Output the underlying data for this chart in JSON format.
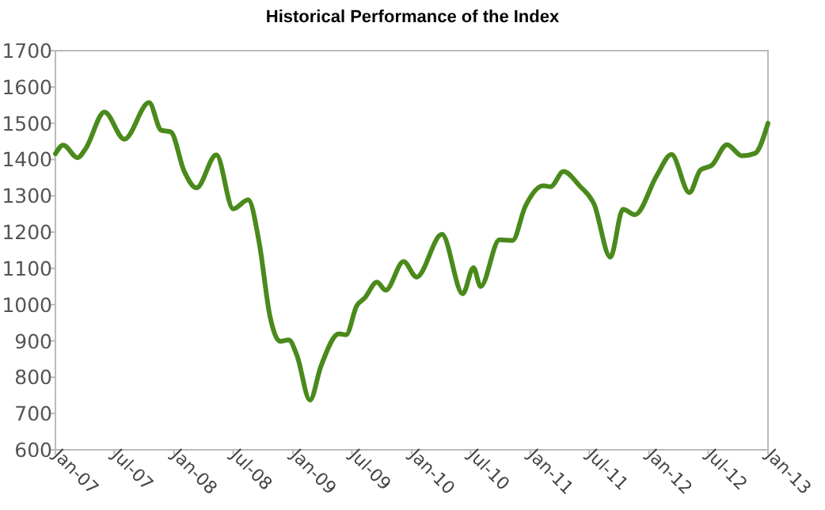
{
  "chart_data": {
    "type": "line",
    "title": "Historical Performance of the Index",
    "x": [
      "2007-01-01",
      "2007-01-25",
      "2007-03-10",
      "2007-04-04",
      "2007-06-01",
      "2007-08-01",
      "2007-10-16",
      "2007-11-22",
      "2007-12-22",
      "2008-02-01",
      "2008-03-10",
      "2008-05-10",
      "2008-07-01",
      "2008-08-16",
      "2008-09-19",
      "2008-10-22",
      "2008-11-22",
      "2008-12-19",
      "2009-01-13",
      "2009-02-22",
      "2009-03-28",
      "2009-05-22",
      "2009-06-13",
      "2009-07-16",
      "2009-08-10",
      "2009-09-16",
      "2009-10-13",
      "2009-12-07",
      "2010-01-16",
      "2010-04-04",
      "2010-06-07",
      "2010-07-10",
      "2010-08-01",
      "2010-09-28",
      "2010-11-07",
      "2010-12-16",
      "2011-02-10",
      "2011-03-04",
      "2011-04-13",
      "2011-06-01",
      "2011-07-16",
      "2011-09-04",
      "2011-10-13",
      "2011-11-19",
      "2012-01-25",
      "2012-03-10",
      "2012-05-04",
      "2012-06-07",
      "2012-07-13",
      "2012-08-28",
      "2012-10-13",
      "2012-11-22",
      "2013-01-01"
    ],
    "series": [
      {
        "color": "#4a8a1c",
        "values": [
          1416,
          1440,
          1405,
          1430,
          1531,
          1456,
          1557,
          1481,
          1476,
          1368,
          1322,
          1413,
          1264,
          1289,
          1170,
          968,
          899,
          903,
          860,
          737,
          831,
          920,
          917,
          997,
          1019,
          1062,
          1040,
          1119,
          1076,
          1194,
          1030,
          1102,
          1050,
          1179,
          1177,
          1270,
          1328,
          1325,
          1367,
          1328,
          1277,
          1131,
          1263,
          1248,
          1356,
          1414,
          1309,
          1371,
          1385,
          1441,
          1410,
          1417,
          1500
        ]
      }
    ],
    "xlim": [
      "2007-01-01",
      "2013-01-01"
    ],
    "xticks": [
      {
        "value": "2007-01",
        "label": "Jan-07"
      },
      {
        "value": "2007-07",
        "label": "Jul-07"
      },
      {
        "value": "2008-01",
        "label": "Jan-08"
      },
      {
        "value": "2008-07",
        "label": "Jul-08"
      },
      {
        "value": "2009-01",
        "label": "Jan-09"
      },
      {
        "value": "2009-07",
        "label": "Jul-09"
      },
      {
        "value": "2010-01",
        "label": "Jan-10"
      },
      {
        "value": "2010-07",
        "label": "Jul-10"
      },
      {
        "value": "2011-01",
        "label": "Jan-11"
      },
      {
        "value": "2011-07",
        "label": "Jul-11"
      },
      {
        "value": "2012-01",
        "label": "Jan-12"
      },
      {
        "value": "2012-07",
        "label": "Jul-12"
      },
      {
        "value": "2013-01",
        "label": "Jan-13"
      }
    ],
    "ylim": [
      600,
      1700
    ],
    "yticks": [
      600,
      700,
      800,
      900,
      1000,
      1100,
      1200,
      1300,
      1400,
      1500,
      1600,
      1700
    ],
    "grid": false,
    "marker": "none",
    "line_style": "solid"
  }
}
